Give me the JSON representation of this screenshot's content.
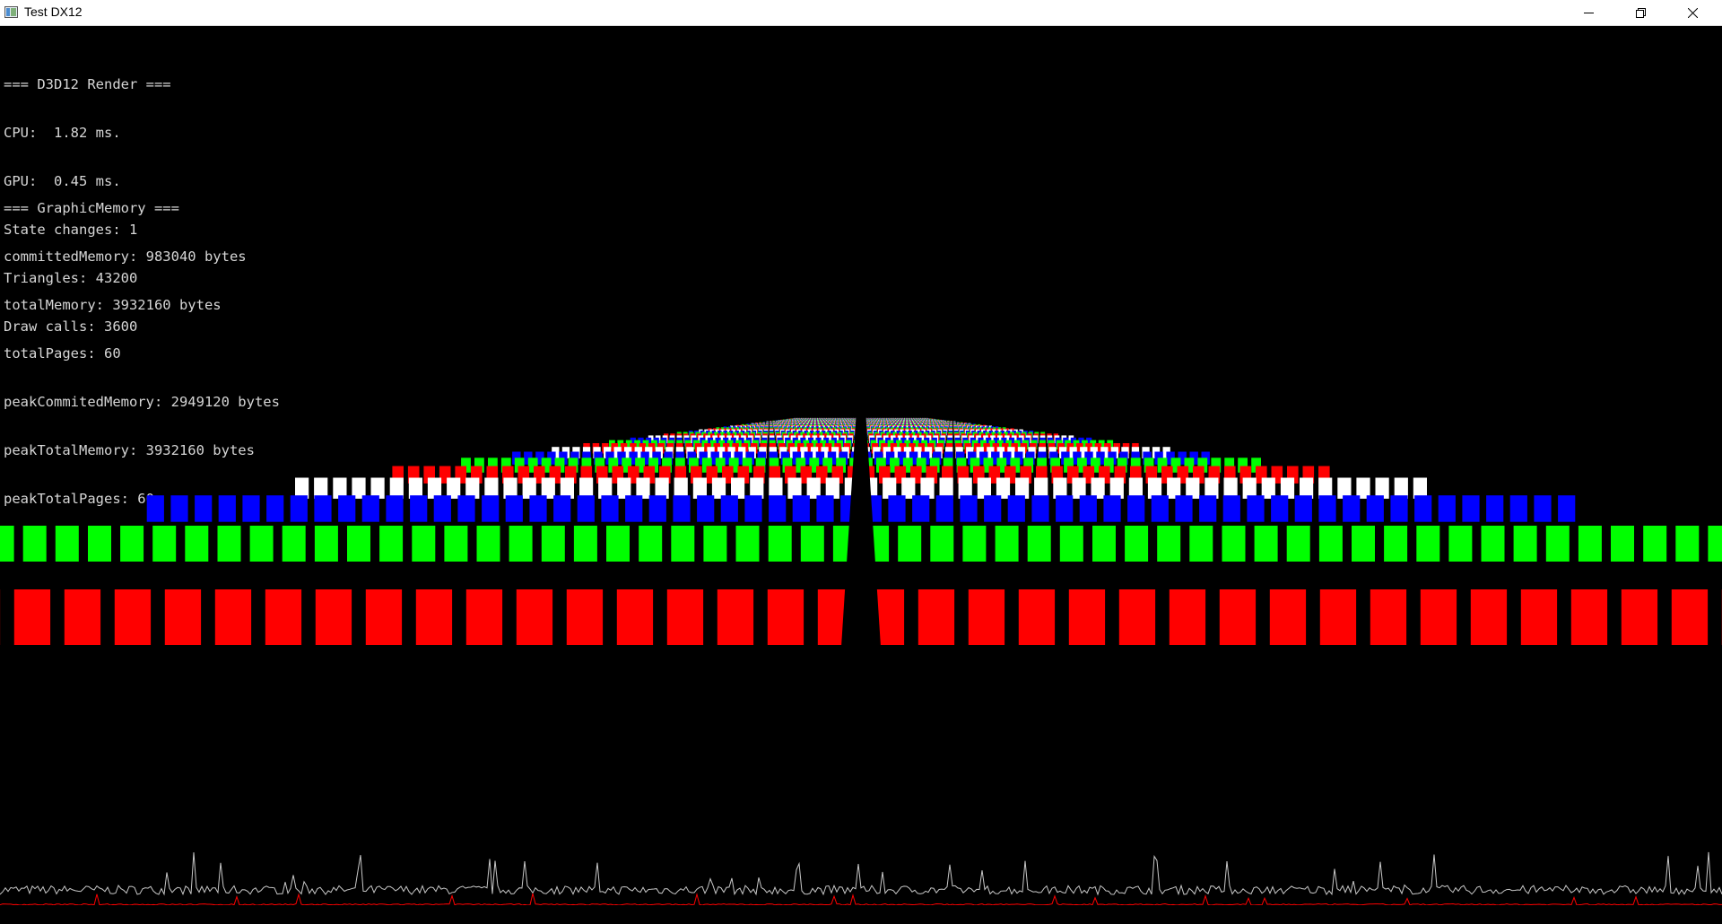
{
  "window": {
    "title": "Test DX12",
    "icon": "app-window-icon",
    "controls": [
      "minimize-icon",
      "restore-icon",
      "close-icon"
    ]
  },
  "render_stats": {
    "header": "=== D3D12 Render ===",
    "cpu": "CPU:  1.82 ms.",
    "gpu": "GPU:  0.45 ms.",
    "state_changes": "State changes: 1",
    "triangles": "Triangles: 43200",
    "draw_calls": "Draw calls: 3600"
  },
  "memory_stats": {
    "header": "=== GraphicMemory ===",
    "committed": "committedMemory: 983040 bytes",
    "total": "totalMemory: 3932160 bytes",
    "pages": "totalPages: 60",
    "peak_committed": "peakCommitedMemory: 2949120 bytes",
    "peak_total": "peakTotalMemory: 3932160 bytes",
    "peak_pages": "peakTotalPages: 60"
  },
  "scene": {
    "cube_colors": [
      "#ff0000",
      "#00ff00",
      "#0000ff",
      "#ffffff"
    ]
  },
  "frame_graph": {
    "cpu_line_color": "#c8c8c8",
    "gpu_line_color": "#ff0000"
  }
}
